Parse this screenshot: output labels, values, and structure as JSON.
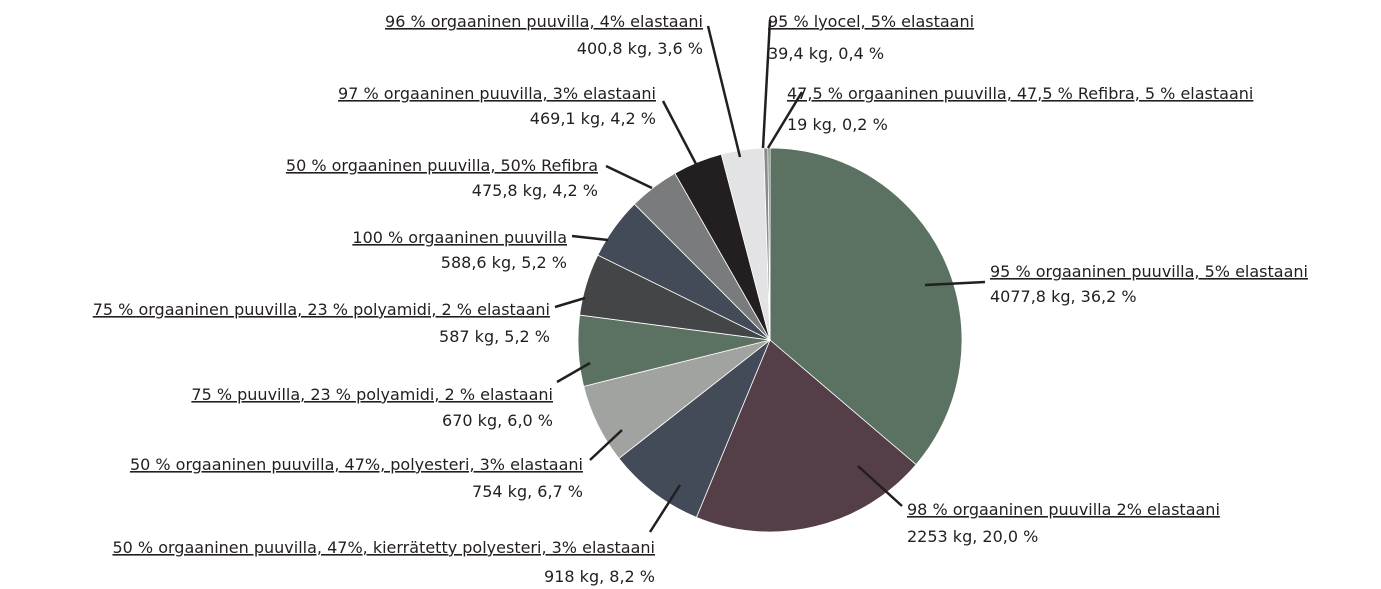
{
  "chart_data": {
    "type": "pie",
    "categories": [
      "95 % orgaaninen puuvilla, 5% elastaani",
      "98 % orgaaninen puuvilla 2% elastaani",
      "50 % orgaaninen puuvilla, 47%, kierrätetty polyesteri, 3% elastaani",
      "50 % orgaaninen puuvilla, 47%, polyesteri, 3% elastaani",
      "75 % puuvilla, 23 % polyamidi, 2 % elastaani",
      "75 % orgaaninen puuvilla, 23 % polyamidi, 2 % elastaani",
      "100 % orgaaninen puuvilla",
      "50 % orgaaninen puuvilla, 50% Refibra",
      "97 % orgaaninen puuvilla, 3% elastaani",
      "96 % orgaaninen puuvilla, 4% elastaani",
      "95 % lyocel, 5% elastaani",
      "47,5 % orgaaninen puuvilla, 47,5 % Refibra, 5 % elastaani"
    ],
    "values": [
      4077.8,
      2253,
      918,
      754,
      670,
      587,
      588.6,
      475.8,
      469.1,
      400.8,
      39.4,
      19
    ],
    "value_labels": [
      "4077,8 kg, 36,2 %",
      "2253 kg, 20,0 %",
      "918 kg, 8,2 %",
      "754 kg, 6,7 %",
      "670 kg, 6,0 %",
      "587 kg, 5,2 %",
      "588,6 kg, 5,2 %",
      "475,8 kg, 4,2 %",
      "469,1 kg, 4,2 %",
      "400,8 kg, 3,6 %",
      "39,4 kg, 0,4 %",
      "19 kg, 0,2 %"
    ],
    "colors": [
      "#5b7161",
      "#543f49",
      "#434b58",
      "#a1a3a1",
      "#5b7161",
      "#444546",
      "#434b58",
      "#7a7b7d",
      "#231f20",
      "#e3e3e5",
      "#8a8b8c",
      "#5b7161"
    ]
  }
}
